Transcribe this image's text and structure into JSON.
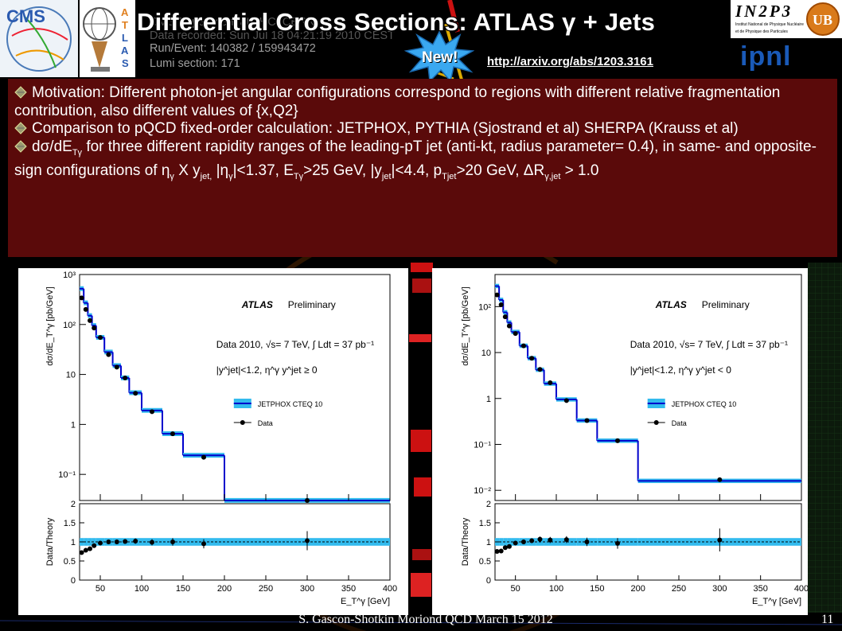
{
  "slide": {
    "title": "Differential Cross Sections: ATLAS γ + Jets",
    "new_badge": "New!",
    "link": "http://arxiv.org/abs/1203.3161",
    "footer": "S. Gascon-Shotkin Moriond QCD March 15 2012",
    "page_number": "11",
    "background_overlay": {
      "line1": "CMS Experiment at LHC, CERN",
      "line2": "Data recorded: Sun Jul 18 04:21:19 2010 CEST",
      "line3": "Run/Event: 140382 / 159943472",
      "line4": "Lumi section: 171"
    },
    "logos": {
      "cms": "CMS",
      "atlas": "ATLAS",
      "in2p3": "IN2P3",
      "in2p3_sub1": "Institut National de Physique Nucléaire",
      "in2p3_sub2": "et de Physique des Particules",
      "ipnl": "ipnl",
      "ub": "UB"
    }
  },
  "motivation": {
    "b1": "Motivation:  Different photon-jet angular configurations correspond to regions with different relative fragmentation contribution, also different values of {x,Q2}",
    "b2": "Comparison to pQCD fixed-order calculation: JETPHOX, PYTHIA (Sjostrand et al) SHERPA (Krauss et al)",
    "b3_a": "dσ/dE",
    "b3_a_sub": "Tγ",
    "b3_b": " for three different rapidity ranges of the leading-pT jet (anti-kt, radius parameter= 0.4), in same- and opposite-sign configurations of ",
    "b3_eta": "η",
    "b3_eta_sub": "γ",
    "b3_c": " X y",
    "b3_c_sub": "jet,",
    "b3_d": " |η",
    "b3_d_sub": "γ",
    "b3_e": "|<1.37, E",
    "b3_e_sub": "Tγ",
    "b3_f": ">25 GeV, |y",
    "b3_f_sub": "jet",
    "b3_g": "|<4.4, p",
    "b3_g_sub": "Tjet",
    "b3_h": ">20 GeV, ΔR",
    "b3_h_sub": "γ,jet",
    "b3_i": " > 1.0"
  },
  "colors": {
    "band": "#33bbee",
    "theory_line": "#0000cc",
    "motivation_bg": "#5a0a0a",
    "slide_bg": "#000000"
  },
  "chart_data": [
    {
      "type": "line",
      "label_atlas": "ATLAS",
      "label_prelim": "Preliminary",
      "data_info": "Data 2010, √s= 7 TeV, ∫ Ldt = 37 pb⁻¹",
      "selection": "|y^jet|<1.2, η^γ y^jet ≥ 0",
      "legend": [
        "JETPHOX CTEQ 10",
        "Data"
      ],
      "ylabel": "dσ/dE_T^γ [pb/GeV]",
      "xlabel": "E_T^γ [GeV]",
      "ratio_ylabel": "Data/Theory",
      "log_y": true,
      "ylim": [
        0.03,
        1000
      ],
      "xlim": [
        25,
        400
      ],
      "ratio_ylim": [
        0,
        2
      ],
      "y_ticks": [
        "10⁻¹",
        "1",
        "10",
        "10²",
        "10³"
      ],
      "x_ticks": [
        "50",
        "100",
        "150",
        "200",
        "250",
        "300",
        "350",
        "400"
      ],
      "ratio_ticks": [
        "0",
        "0.5",
        "1",
        "1.5",
        "2"
      ],
      "bin_edges": [
        25,
        30,
        35,
        40,
        45,
        55,
        65,
        75,
        85,
        100,
        125,
        150,
        200,
        400
      ],
      "theory": [
        520,
        270,
        150,
        95,
        55,
        28,
        15,
        8.5,
        4.3,
        1.9,
        0.65,
        0.24,
        0.03
      ],
      "data_x": [
        27.5,
        32.5,
        37.5,
        42.5,
        50,
        60,
        70,
        80,
        92.5,
        112.5,
        137.5,
        175,
        300
      ],
      "data_y": [
        340,
        200,
        120,
        85,
        55,
        25,
        14,
        8.5,
        4.2,
        1.8,
        0.65,
        0.22,
        0.03
      ],
      "ratio": [
        0.72,
        0.78,
        0.82,
        0.9,
        0.97,
        1.0,
        1.0,
        1.01,
        1.02,
        0.99,
        1.0,
        0.95,
        1.03
      ],
      "ratio_err": [
        0.05,
        0.05,
        0.05,
        0.05,
        0.05,
        0.05,
        0.06,
        0.06,
        0.07,
        0.08,
        0.1,
        0.12,
        0.25
      ]
    },
    {
      "type": "line",
      "label_atlas": "ATLAS",
      "label_prelim": "Preliminary",
      "data_info": "Data 2010, √s= 7 TeV, ∫ Ldt = 37 pb⁻¹",
      "selection": "|y^jet|<1.2, η^γ y^jet < 0",
      "legend": [
        "JETPHOX CTEQ 10",
        "Data"
      ],
      "ylabel": "dσ/dE_T^γ [pb/GeV]",
      "xlabel": "E_T^γ [GeV]",
      "ratio_ylabel": "Data/Theory",
      "log_y": true,
      "ylim": [
        0.006,
        500
      ],
      "xlim": [
        25,
        400
      ],
      "ratio_ylim": [
        0,
        2
      ],
      "y_ticks": [
        "10⁻²",
        "10⁻¹",
        "1",
        "10",
        "10²"
      ],
      "x_ticks": [
        "50",
        "100",
        "150",
        "200",
        "250",
        "300",
        "350",
        "400"
      ],
      "ratio_ticks": [
        "0",
        "0.5",
        "1",
        "1.5",
        "2"
      ],
      "bin_edges": [
        25,
        30,
        35,
        40,
        45,
        55,
        65,
        75,
        85,
        100,
        125,
        150,
        200,
        400
      ],
      "theory": [
        280,
        140,
        75,
        45,
        28,
        14,
        7.5,
        4.2,
        2.1,
        0.95,
        0.33,
        0.12,
        0.016
      ],
      "data_x": [
        27.5,
        32.5,
        37.5,
        42.5,
        50,
        60,
        70,
        80,
        92.5,
        112.5,
        137.5,
        175,
        300
      ],
      "data_y": [
        180,
        110,
        60,
        38,
        26,
        14,
        7.5,
        4.3,
        2.2,
        0.9,
        0.33,
        0.12,
        0.017
      ],
      "ratio": [
        0.75,
        0.76,
        0.85,
        0.88,
        0.97,
        1.0,
        1.03,
        1.07,
        1.05,
        1.06,
        1.0,
        0.96,
        1.05
      ],
      "ratio_err": [
        0.05,
        0.05,
        0.05,
        0.05,
        0.05,
        0.06,
        0.06,
        0.07,
        0.08,
        0.09,
        0.11,
        0.14,
        0.3
      ]
    }
  ]
}
